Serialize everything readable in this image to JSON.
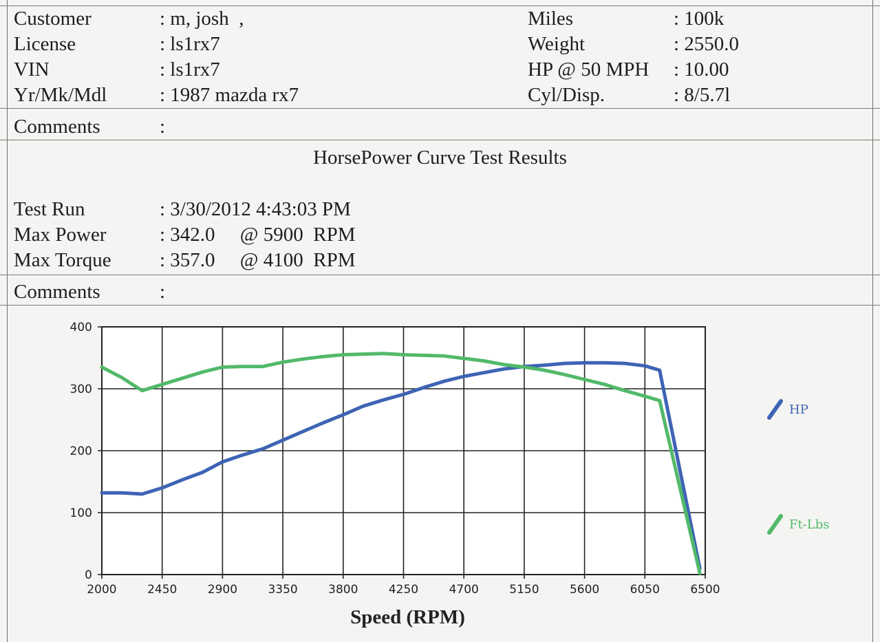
{
  "header": {
    "left": [
      {
        "label": "Customer",
        "value": ": m, josh  ,"
      },
      {
        "label": "License",
        "value": ": ls1rx7"
      },
      {
        "label": "VIN",
        "value": ": ls1rx7"
      },
      {
        "label": "Yr/Mk/Mdl",
        "value": ": 1987 mazda rx7"
      }
    ],
    "right": [
      {
        "label": "Miles",
        "value": ": 100k"
      },
      {
        "label": "Weight",
        "value": ": 2550.0"
      },
      {
        "label": "HP @ 50 MPH",
        "value": ": 10.00"
      },
      {
        "label": "Cyl/Disp.",
        "value": ": 8/5.7l"
      }
    ],
    "comments1_label": "Comments",
    "comments1_value": ":"
  },
  "report_title": "HorsePower Curve Test Results",
  "results": [
    {
      "label": "Test Run",
      "value": ": 3/30/2012 4:43:03 PM"
    },
    {
      "label": "Max Power",
      "value": ": 342.0     @ 5900  RPM"
    },
    {
      "label": "Max Torque",
      "value": ": 357.0     @ 4100  RPM"
    }
  ],
  "comments2_label": "Comments",
  "comments2_value": ":",
  "chart_data": {
    "type": "line",
    "xlabel": "Speed (RPM)",
    "ylabel": "",
    "xlim": [
      2000,
      6500
    ],
    "ylim": [
      0,
      400
    ],
    "x_ticks": [
      2000,
      2450,
      2900,
      3350,
      3800,
      4250,
      4700,
      5150,
      5600,
      6050,
      6500
    ],
    "y_ticks": [
      0,
      100,
      200,
      300,
      400
    ],
    "grid": true,
    "legend_position": "right",
    "series": [
      {
        "name": "HP",
        "color": "#3e64b4",
        "points": [
          [
            2000,
            132
          ],
          [
            2150,
            132
          ],
          [
            2300,
            130
          ],
          [
            2450,
            140
          ],
          [
            2600,
            153
          ],
          [
            2750,
            165
          ],
          [
            2900,
            182
          ],
          [
            3050,
            193
          ],
          [
            3200,
            203
          ],
          [
            3350,
            217
          ],
          [
            3500,
            231
          ],
          [
            3650,
            245
          ],
          [
            3800,
            258
          ],
          [
            3950,
            272
          ],
          [
            4100,
            282
          ],
          [
            4250,
            291
          ],
          [
            4400,
            302
          ],
          [
            4550,
            312
          ],
          [
            4700,
            320
          ],
          [
            4850,
            326
          ],
          [
            5000,
            332
          ],
          [
            5150,
            336
          ],
          [
            5300,
            338
          ],
          [
            5450,
            341
          ],
          [
            5600,
            342
          ],
          [
            5750,
            342
          ],
          [
            5900,
            341
          ],
          [
            6050,
            337
          ],
          [
            6160,
            330
          ],
          [
            6460,
            10
          ]
        ]
      },
      {
        "name": "Ft-Lbs",
        "color": "#52b96a",
        "points": [
          [
            2000,
            335
          ],
          [
            2150,
            318
          ],
          [
            2300,
            297
          ],
          [
            2450,
            307
          ],
          [
            2600,
            317
          ],
          [
            2750,
            327
          ],
          [
            2900,
            335
          ],
          [
            3050,
            336
          ],
          [
            3200,
            336
          ],
          [
            3350,
            343
          ],
          [
            3500,
            348
          ],
          [
            3650,
            352
          ],
          [
            3800,
            355
          ],
          [
            3950,
            356
          ],
          [
            4100,
            357
          ],
          [
            4250,
            355
          ],
          [
            4400,
            354
          ],
          [
            4550,
            353
          ],
          [
            4700,
            349
          ],
          [
            4850,
            345
          ],
          [
            5000,
            339
          ],
          [
            5150,
            335
          ],
          [
            5300,
            330
          ],
          [
            5450,
            323
          ],
          [
            5600,
            315
          ],
          [
            5750,
            307
          ],
          [
            5900,
            297
          ],
          [
            6050,
            288
          ],
          [
            6160,
            281
          ],
          [
            6460,
            2
          ]
        ]
      }
    ]
  }
}
